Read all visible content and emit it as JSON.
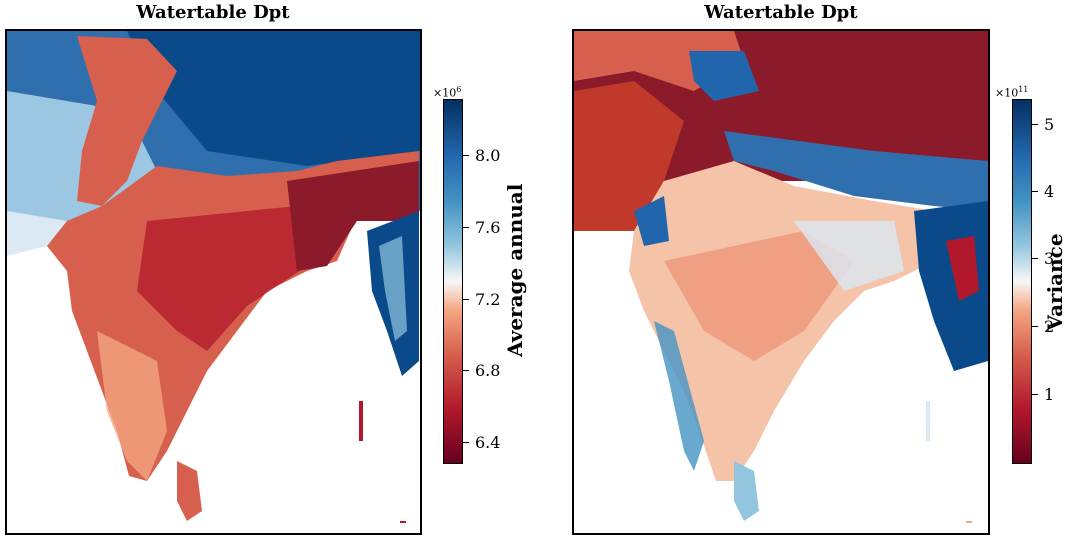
{
  "chart_data": [
    {
      "type": "heatmap",
      "title": "Watertable Dpt",
      "colorbar": {
        "label": "Average annual",
        "multiplier": "×10",
        "multiplier_exp": "6",
        "ticks": [
          "8.0",
          "7.6",
          "7.2",
          "6.8",
          "6.4"
        ],
        "tick_values": [
          8.0,
          7.6,
          7.2,
          6.8,
          6.4
        ],
        "range": [
          6.25,
          8.3
        ],
        "colormap": "RdBu (low = dark red, high = dark blue)"
      },
      "region": "South Asia (Indian subcontinent)",
      "colors": {
        "low": "#67001f",
        "mid": "#f7f7f7",
        "high": "#053061"
      }
    },
    {
      "type": "heatmap",
      "title": "Watertable Dpt",
      "colorbar": {
        "label": "Variance",
        "multiplier": "×10",
        "multiplier_exp": "11",
        "ticks": [
          "5",
          "4",
          "3",
          "2",
          "1"
        ],
        "tick_values": [
          5,
          4,
          3,
          2,
          1
        ],
        "range": [
          0.05,
          5.3
        ],
        "colormap": "RdBu (low = dark red, high = dark blue)"
      },
      "region": "South Asia (Indian subcontinent)",
      "colors": {
        "low": "#67001f",
        "mid": "#f7f7f7",
        "high": "#053061"
      }
    }
  ]
}
